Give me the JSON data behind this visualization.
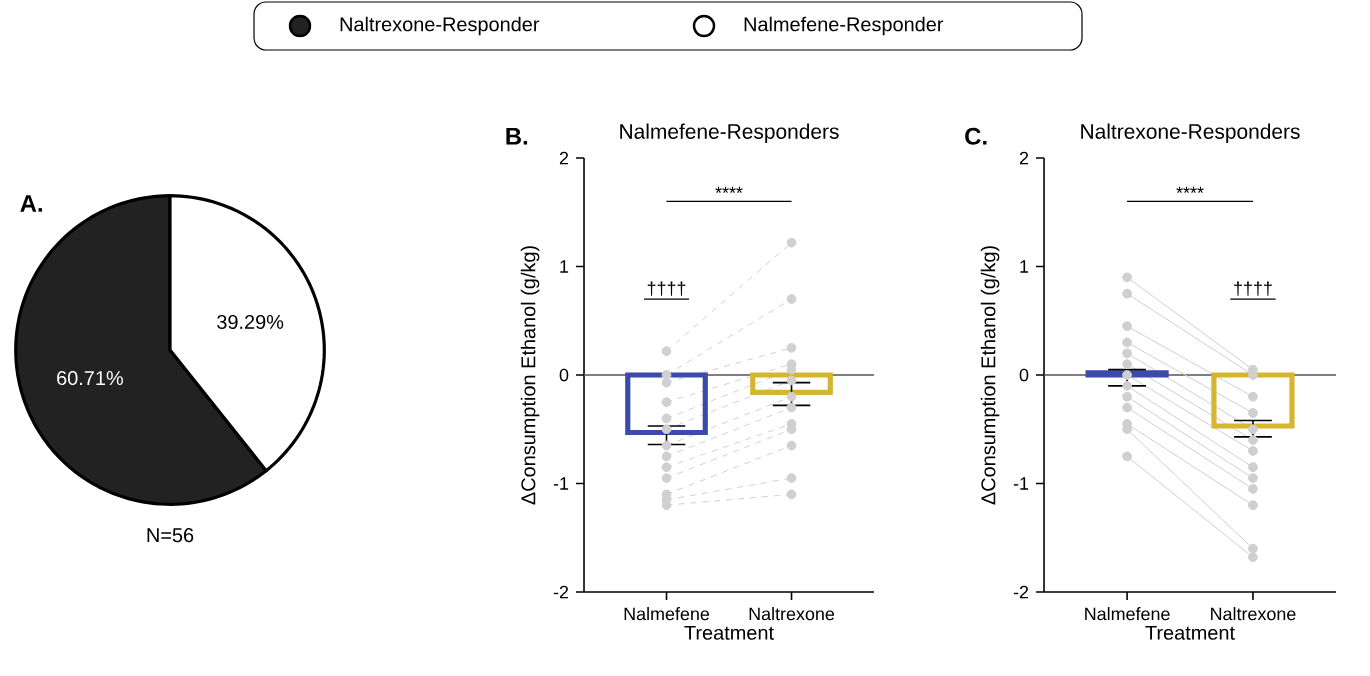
{
  "chart_data": [
    {
      "type": "pie",
      "categories": [
        "Naltrexone-Responder",
        "Nalmefene-Responder"
      ],
      "values": [
        60.71,
        39.29
      ],
      "colors": [
        "#222222",
        "#ffffff"
      ],
      "value_labels": [
        "60.71%",
        "39.29%"
      ],
      "legend": "top",
      "annotations": [
        "A.",
        "N=56"
      ]
    },
    {
      "type": "bar",
      "title": "Nalmefene-Responders",
      "xlabel": "Treatment",
      "ylabel": "ΔConsumption Ethanol (g/kg)",
      "categories": [
        "Nalmefene",
        "Naltrexone"
      ],
      "ylim": [
        -2,
        2
      ],
      "yticks": [
        -2,
        -1,
        0,
        1,
        2
      ],
      "ref_lines": [
        {
          "axis": "y",
          "value": 0,
          "color": "#555555"
        }
      ],
      "annotations": [
        "B.",
        "****",
        "††††"
      ],
      "series": [
        {
          "type": "line",
          "x": [
            "Nalmefene",
            "Naltrexone"
          ],
          "values": [
            0.22,
            1.22
          ],
          "color": "#d0d0d0",
          "line_style": "dashed",
          "marker": "circle"
        },
        {
          "type": "line",
          "x": [
            "Nalmefene",
            "Naltrexone"
          ],
          "values": [
            0.0,
            0.7
          ],
          "color": "#d0d0d0",
          "line_style": "dashed",
          "marker": "circle"
        },
        {
          "type": "line",
          "x": [
            "Nalmefene",
            "Naltrexone"
          ],
          "values": [
            -0.07,
            0.25
          ],
          "color": "#d0d0d0",
          "line_style": "dashed",
          "marker": "circle"
        },
        {
          "type": "line",
          "x": [
            "Nalmefene",
            "Naltrexone"
          ],
          "values": [
            -0.25,
            0.1
          ],
          "color": "#d0d0d0",
          "line_style": "dashed",
          "marker": "circle"
        },
        {
          "type": "line",
          "x": [
            "Nalmefene",
            "Naltrexone"
          ],
          "values": [
            -0.4,
            0.05
          ],
          "color": "#d0d0d0",
          "line_style": "dashed",
          "marker": "circle"
        },
        {
          "type": "line",
          "x": [
            "Nalmefene",
            "Naltrexone"
          ],
          "values": [
            -0.5,
            -0.05
          ],
          "color": "#d0d0d0",
          "line_style": "dashed",
          "marker": "circle"
        },
        {
          "type": "line",
          "x": [
            "Nalmefene",
            "Naltrexone"
          ],
          "values": [
            -0.65,
            -0.2
          ],
          "color": "#d0d0d0",
          "line_style": "dashed",
          "marker": "circle"
        },
        {
          "type": "line",
          "x": [
            "Nalmefene",
            "Naltrexone"
          ],
          "values": [
            -0.75,
            -0.3
          ],
          "color": "#d0d0d0",
          "line_style": "dashed",
          "marker": "circle"
        },
        {
          "type": "line",
          "x": [
            "Nalmefene",
            "Naltrexone"
          ],
          "values": [
            -0.85,
            -0.45
          ],
          "color": "#d0d0d0",
          "line_style": "dashed",
          "marker": "circle"
        },
        {
          "type": "line",
          "x": [
            "Nalmefene",
            "Naltrexone"
          ],
          "values": [
            -0.95,
            -0.5
          ],
          "color": "#d0d0d0",
          "line_style": "dashed",
          "marker": "circle"
        },
        {
          "type": "line",
          "x": [
            "Nalmefene",
            "Naltrexone"
          ],
          "values": [
            -1.1,
            -0.65
          ],
          "color": "#d0d0d0",
          "line_style": "dashed",
          "marker": "circle"
        },
        {
          "type": "line",
          "x": [
            "Nalmefene",
            "Naltrexone"
          ],
          "values": [
            -1.15,
            -0.95
          ],
          "color": "#d0d0d0",
          "line_style": "dashed",
          "marker": "circle"
        },
        {
          "type": "line",
          "x": [
            "Nalmefene",
            "Naltrexone"
          ],
          "values": [
            -1.2,
            -1.1
          ],
          "color": "#d0d0d0",
          "line_style": "dashed",
          "marker": "circle"
        },
        {
          "type": "bar",
          "colors": [
            "#3c4aa8",
            "#d6b530"
          ],
          "values": [
            -0.53,
            -0.16
          ],
          "errors": [
            [
              -0.64,
              -0.47
            ],
            [
              -0.28,
              -0.07
            ]
          ]
        }
      ]
    },
    {
      "type": "bar",
      "title": "Naltrexone-Responders",
      "xlabel": "Treatment",
      "ylabel": "ΔConsumption Ethanol (g/kg)",
      "categories": [
        "Nalmefene",
        "Naltrexone"
      ],
      "ylim": [
        -2,
        2
      ],
      "yticks": [
        -2,
        -1,
        0,
        1,
        2
      ],
      "ref_lines": [
        {
          "axis": "y",
          "value": 0,
          "color": "#555555"
        }
      ],
      "annotations": [
        "C.",
        "****",
        "††††"
      ],
      "series": [
        {
          "type": "line",
          "x": [
            "Nalmefene",
            "Naltrexone"
          ],
          "values": [
            0.9,
            0.05
          ],
          "color": "#cfcfcf",
          "line_style": "solid",
          "marker": "circle"
        },
        {
          "type": "line",
          "x": [
            "Nalmefene",
            "Naltrexone"
          ],
          "values": [
            0.75,
            0.0
          ],
          "color": "#cfcfcf",
          "line_style": "solid",
          "marker": "circle"
        },
        {
          "type": "line",
          "x": [
            "Nalmefene",
            "Naltrexone"
          ],
          "values": [
            0.45,
            -0.2
          ],
          "color": "#cfcfcf",
          "line_style": "solid",
          "marker": "circle"
        },
        {
          "type": "line",
          "x": [
            "Nalmefene",
            "Naltrexone"
          ],
          "values": [
            0.3,
            -0.35
          ],
          "color": "#cfcfcf",
          "line_style": "solid",
          "marker": "circle"
        },
        {
          "type": "line",
          "x": [
            "Nalmefene",
            "Naltrexone"
          ],
          "values": [
            0.2,
            -0.5
          ],
          "color": "#cfcfcf",
          "line_style": "solid",
          "marker": "circle"
        },
        {
          "type": "line",
          "x": [
            "Nalmefene",
            "Naltrexone"
          ],
          "values": [
            0.1,
            -0.6
          ],
          "color": "#cfcfcf",
          "line_style": "solid",
          "marker": "circle"
        },
        {
          "type": "line",
          "x": [
            "Nalmefene",
            "Naltrexone"
          ],
          "values": [
            0.0,
            -0.7
          ],
          "color": "#cfcfcf",
          "line_style": "solid",
          "marker": "circle"
        },
        {
          "type": "line",
          "x": [
            "Nalmefene",
            "Naltrexone"
          ],
          "values": [
            -0.1,
            -0.85
          ],
          "color": "#cfcfcf",
          "line_style": "solid",
          "marker": "circle"
        },
        {
          "type": "line",
          "x": [
            "Nalmefene",
            "Naltrexone"
          ],
          "values": [
            -0.2,
            -0.95
          ],
          "color": "#cfcfcf",
          "line_style": "solid",
          "marker": "circle"
        },
        {
          "type": "line",
          "x": [
            "Nalmefene",
            "Naltrexone"
          ],
          "values": [
            -0.3,
            -1.05
          ],
          "color": "#cfcfcf",
          "line_style": "solid",
          "marker": "circle"
        },
        {
          "type": "line",
          "x": [
            "Nalmefene",
            "Naltrexone"
          ],
          "values": [
            -0.45,
            -1.2
          ],
          "color": "#cfcfcf",
          "line_style": "solid",
          "marker": "circle"
        },
        {
          "type": "line",
          "x": [
            "Nalmefene",
            "Naltrexone"
          ],
          "values": [
            -0.5,
            -1.6
          ],
          "color": "#cfcfcf",
          "line_style": "solid",
          "marker": "circle"
        },
        {
          "type": "line",
          "x": [
            "Nalmefene",
            "Naltrexone"
          ],
          "values": [
            -0.75,
            -1.68
          ],
          "color": "#cfcfcf",
          "line_style": "solid",
          "marker": "circle"
        },
        {
          "type": "bar",
          "colors": [
            "#3c4aa8",
            "#d6b530"
          ],
          "values": [
            0.02,
            -0.47
          ],
          "errors": [
            [
              -0.1,
              0.05
            ],
            [
              -0.57,
              -0.42
            ]
          ]
        }
      ]
    }
  ]
}
